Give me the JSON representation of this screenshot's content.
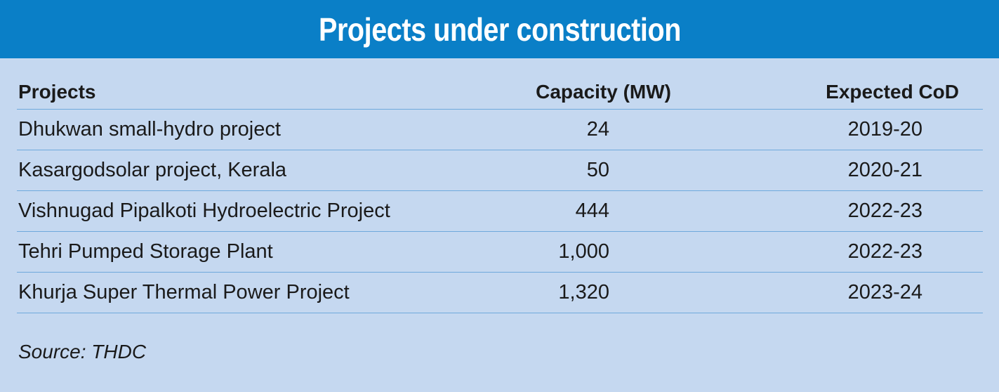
{
  "title": "Projects under construction",
  "table": {
    "headers": {
      "project": "Projects",
      "capacity": "Capacity (MW)",
      "cod": "Expected CoD"
    },
    "rows": [
      {
        "project": "Dhukwan small-hydro project",
        "capacity": "24",
        "cod": "2019-20"
      },
      {
        "project": "Kasargodsolar project, Kerala",
        "capacity": "50",
        "cod": "2020-21"
      },
      {
        "project": "Vishnugad Pipalkoti Hydroelectric Project",
        "capacity": "444",
        "cod": "2022-23"
      },
      {
        "project": "Tehri Pumped Storage Plant",
        "capacity": "1,000",
        "cod": "2022-23"
      },
      {
        "project": "Khurja Super Thermal Power Project",
        "capacity": "1,320",
        "cod": "2023-24"
      }
    ]
  },
  "source": "Source: THDC",
  "colors": {
    "title_bar": "#0a7fc7",
    "background": "#c5d8f0",
    "rule": "#6fa9dc"
  }
}
